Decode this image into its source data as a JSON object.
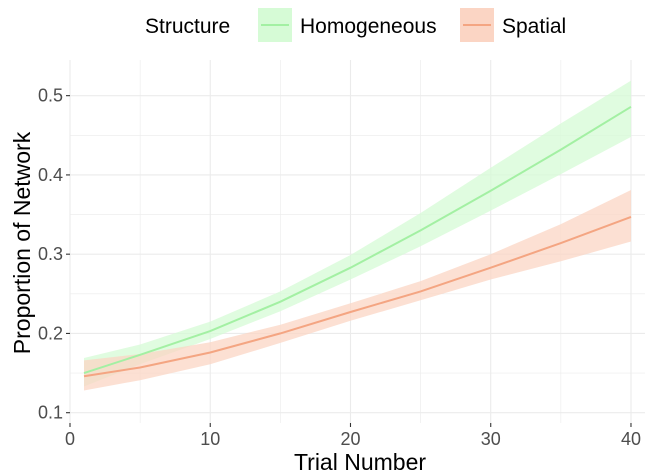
{
  "chart_data": {
    "type": "line",
    "xlabel": "Trial Number",
    "ylabel": "Proportion of Network",
    "xlim": [
      0,
      41
    ],
    "ylim": [
      0.087,
      0.545
    ],
    "x_ticks": [
      0,
      10,
      20,
      30,
      40
    ],
    "y_ticks": [
      0.1,
      0.2,
      0.3,
      0.4,
      0.5
    ],
    "x_tick_labels": [
      "0",
      "10",
      "20",
      "30",
      "40"
    ],
    "y_tick_labels": [
      "0.1",
      "0.2",
      "0.3",
      "0.4",
      "0.5"
    ],
    "grid": true,
    "legend": {
      "title": "Structure",
      "position": "top"
    },
    "series": [
      {
        "name": "Homogeneous",
        "color": "#a3f0a3",
        "ribbon_color": "#d6fbd6",
        "x": [
          1,
          5,
          10,
          15,
          20,
          25,
          30,
          35,
          40
        ],
        "y": [
          0.15,
          0.173,
          0.203,
          0.24,
          0.283,
          0.33,
          0.38,
          0.432,
          0.486
        ],
        "lower": [
          0.133,
          0.161,
          0.193,
          0.228,
          0.268,
          0.31,
          0.355,
          0.401,
          0.448
        ],
        "upper": [
          0.169,
          0.186,
          0.215,
          0.253,
          0.299,
          0.352,
          0.409,
          0.465,
          0.519
        ]
      },
      {
        "name": "Spatial",
        "color": "#f4a582",
        "ribbon_color": "#fbd5c4",
        "x": [
          1,
          5,
          10,
          15,
          20,
          25,
          30,
          35,
          40
        ],
        "y": [
          0.146,
          0.157,
          0.176,
          0.2,
          0.227,
          0.253,
          0.283,
          0.314,
          0.347
        ],
        "lower": [
          0.128,
          0.141,
          0.161,
          0.188,
          0.216,
          0.242,
          0.268,
          0.291,
          0.316
        ],
        "upper": [
          0.166,
          0.174,
          0.189,
          0.211,
          0.238,
          0.266,
          0.3,
          0.338,
          0.381
        ]
      }
    ]
  }
}
